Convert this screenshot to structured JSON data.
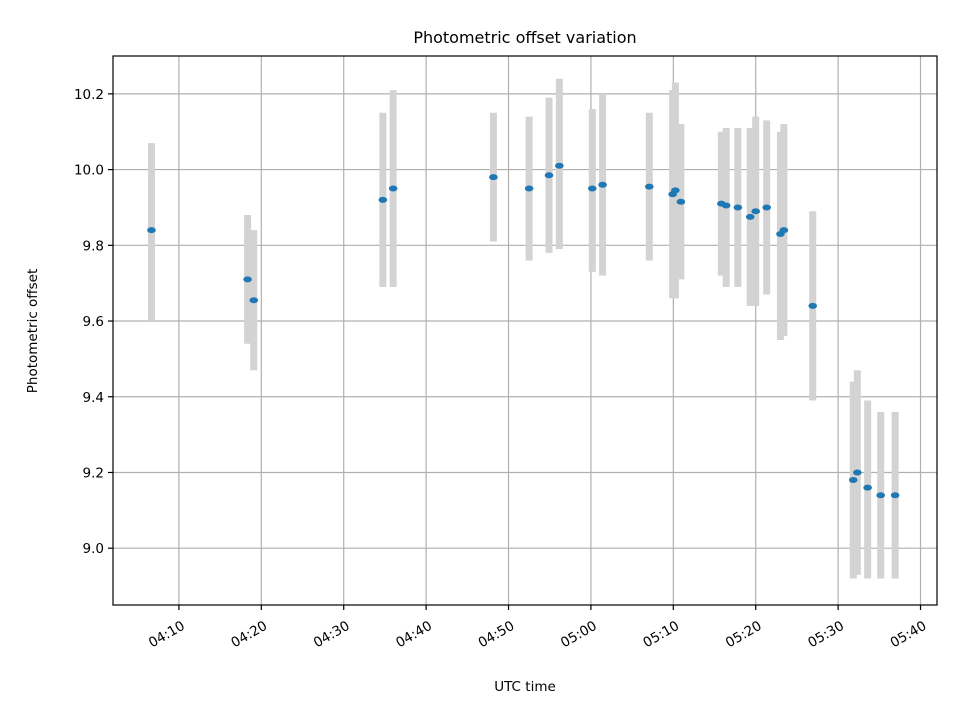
{
  "chart_data": {
    "type": "scatter",
    "title": "Photometric offset variation",
    "xlabel": "UTC time",
    "ylabel": "Photometric offset",
    "grid": true,
    "xlim": [
      "04:02",
      "05:42"
    ],
    "ylim": [
      8.85,
      10.3
    ],
    "x_ticks": [
      "04:10",
      "04:20",
      "04:30",
      "04:40",
      "04:50",
      "05:00",
      "05:10",
      "05:20",
      "05:30",
      "05:40"
    ],
    "y_ticks": [
      "9.0",
      "9.2",
      "9.4",
      "9.6",
      "9.8",
      "10.0",
      "10.2"
    ],
    "colors": {
      "points": "#1f77b4",
      "error_bars": "#d3d3d3"
    },
    "points": [
      {
        "x": "04:06:40",
        "y": 9.84,
        "y_low": 9.6,
        "y_high": 10.07
      },
      {
        "x": "04:18:20",
        "y": 9.71,
        "y_low": 9.54,
        "y_high": 9.88
      },
      {
        "x": "04:19:05",
        "y": 9.655,
        "y_low": 9.47,
        "y_high": 9.84
      },
      {
        "x": "04:34:45",
        "y": 9.92,
        "y_low": 9.69,
        "y_high": 10.15
      },
      {
        "x": "04:36:00",
        "y": 9.95,
        "y_low": 9.69,
        "y_high": 10.21
      },
      {
        "x": "04:48:10",
        "y": 9.98,
        "y_low": 9.81,
        "y_high": 10.15
      },
      {
        "x": "04:52:30",
        "y": 9.95,
        "y_low": 9.76,
        "y_high": 10.14
      },
      {
        "x": "04:54:55",
        "y": 9.985,
        "y_low": 9.78,
        "y_high": 10.19
      },
      {
        "x": "04:56:10",
        "y": 10.01,
        "y_low": 9.79,
        "y_high": 10.24
      },
      {
        "x": "05:00:10",
        "y": 9.95,
        "y_low": 9.73,
        "y_high": 10.16
      },
      {
        "x": "05:01:25",
        "y": 9.96,
        "y_low": 9.72,
        "y_high": 10.2
      },
      {
        "x": "05:07:05",
        "y": 9.955,
        "y_low": 9.76,
        "y_high": 10.15
      },
      {
        "x": "05:09:55",
        "y": 9.935,
        "y_low": 9.66,
        "y_high": 10.21
      },
      {
        "x": "05:10:15",
        "y": 9.945,
        "y_low": 9.66,
        "y_high": 10.23
      },
      {
        "x": "05:10:55",
        "y": 9.915,
        "y_low": 9.71,
        "y_high": 10.12
      },
      {
        "x": "05:15:50",
        "y": 9.91,
        "y_low": 9.72,
        "y_high": 10.1
      },
      {
        "x": "05:16:25",
        "y": 9.905,
        "y_low": 9.69,
        "y_high": 10.11
      },
      {
        "x": "05:17:50",
        "y": 9.9,
        "y_low": 9.69,
        "y_high": 10.11
      },
      {
        "x": "05:19:20",
        "y": 9.875,
        "y_low": 9.64,
        "y_high": 10.11
      },
      {
        "x": "05:20:00",
        "y": 9.89,
        "y_low": 9.64,
        "y_high": 10.14
      },
      {
        "x": "05:21:20",
        "y": 9.9,
        "y_low": 9.67,
        "y_high": 10.13
      },
      {
        "x": "05:23:00",
        "y": 9.83,
        "y_low": 9.55,
        "y_high": 10.1
      },
      {
        "x": "05:23:25",
        "y": 9.84,
        "y_low": 9.56,
        "y_high": 10.12
      },
      {
        "x": "05:26:55",
        "y": 9.64,
        "y_low": 9.39,
        "y_high": 9.89
      },
      {
        "x": "05:31:50",
        "y": 9.18,
        "y_low": 8.92,
        "y_high": 9.44
      },
      {
        "x": "05:32:20",
        "y": 9.2,
        "y_low": 8.93,
        "y_high": 9.47
      },
      {
        "x": "05:33:35",
        "y": 9.16,
        "y_low": 8.92,
        "y_high": 9.39
      },
      {
        "x": "05:35:10",
        "y": 9.14,
        "y_low": 8.92,
        "y_high": 9.36
      },
      {
        "x": "05:36:55",
        "y": 9.14,
        "y_low": 8.92,
        "y_high": 9.36
      }
    ]
  }
}
